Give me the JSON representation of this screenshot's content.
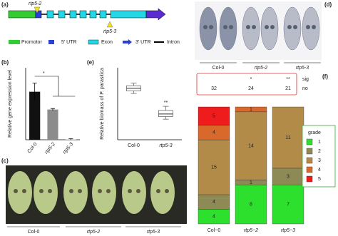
{
  "panel_labels": [
    "(a)",
    "(b)",
    "(c)",
    "(d)",
    "(e)",
    "(f)"
  ],
  "gene_diagram": {
    "mutants": [
      "rtp5-2",
      "rtp5-3"
    ],
    "legend": [
      "Promotor",
      "5' UTR",
      "Exon",
      "3' UTR",
      "Intron"
    ]
  },
  "photo_c": {
    "groups": [
      "Col-0",
      "rtp5-2",
      "rtp5-3"
    ]
  },
  "photo_d": {
    "groups": [
      "Col-0",
      "rtp5-2",
      "rtp5-3"
    ]
  },
  "chart_data": [
    {
      "type": "bar",
      "ylabel": "Relative gene expression level",
      "categories": [
        "Col-0",
        "rtp5-2",
        "rtp5-3"
      ],
      "values": [
        1.0,
        0.63,
        0.01
      ],
      "errors": [
        0.18,
        0.02,
        0.01
      ],
      "colors": [
        "#111111",
        "#8c8c8c",
        "#cfcfcf"
      ],
      "ylim": [
        0,
        1.5
      ],
      "annotation": "*"
    },
    {
      "type": "box",
      "ylabel": "Relative biomass of P. parasitica",
      "categories": [
        "Col-0",
        "rtp5-3"
      ],
      "boxes": [
        {
          "min": 0.9,
          "q1": 0.95,
          "median": 1.0,
          "q3": 1.05,
          "max": 1.1
        },
        {
          "min": 0.4,
          "q1": 0.45,
          "median": 0.5,
          "q3": 0.57,
          "max": 0.65
        }
      ],
      "ylim": [
        0,
        1.4
      ],
      "annotation": "**"
    },
    {
      "type": "stacked_bar",
      "stack": "percent",
      "categories": [
        "Col−0",
        "rtp5−2",
        "rtp5−3"
      ],
      "sig_label": "sig",
      "sig": [
        null,
        "*",
        "**"
      ],
      "no_label": "no",
      "no": [
        32,
        24,
        21
      ],
      "legend_title": "grade",
      "series": [
        {
          "name": "1",
          "color": "#2ee02e",
          "values": [
            4,
            8,
            7
          ]
        },
        {
          "name": "2",
          "color": "#8d8a55",
          "values": [
            4,
            1,
            3
          ]
        },
        {
          "name": "3",
          "color": "#b38b48",
          "values": [
            15,
            14,
            11
          ]
        },
        {
          "name": "4",
          "color": "#d9692a",
          "values": [
            4,
            1,
            0
          ]
        },
        {
          "name": "5",
          "color": "#ee1c1c",
          "values": [
            5,
            0,
            0
          ]
        }
      ]
    }
  ]
}
